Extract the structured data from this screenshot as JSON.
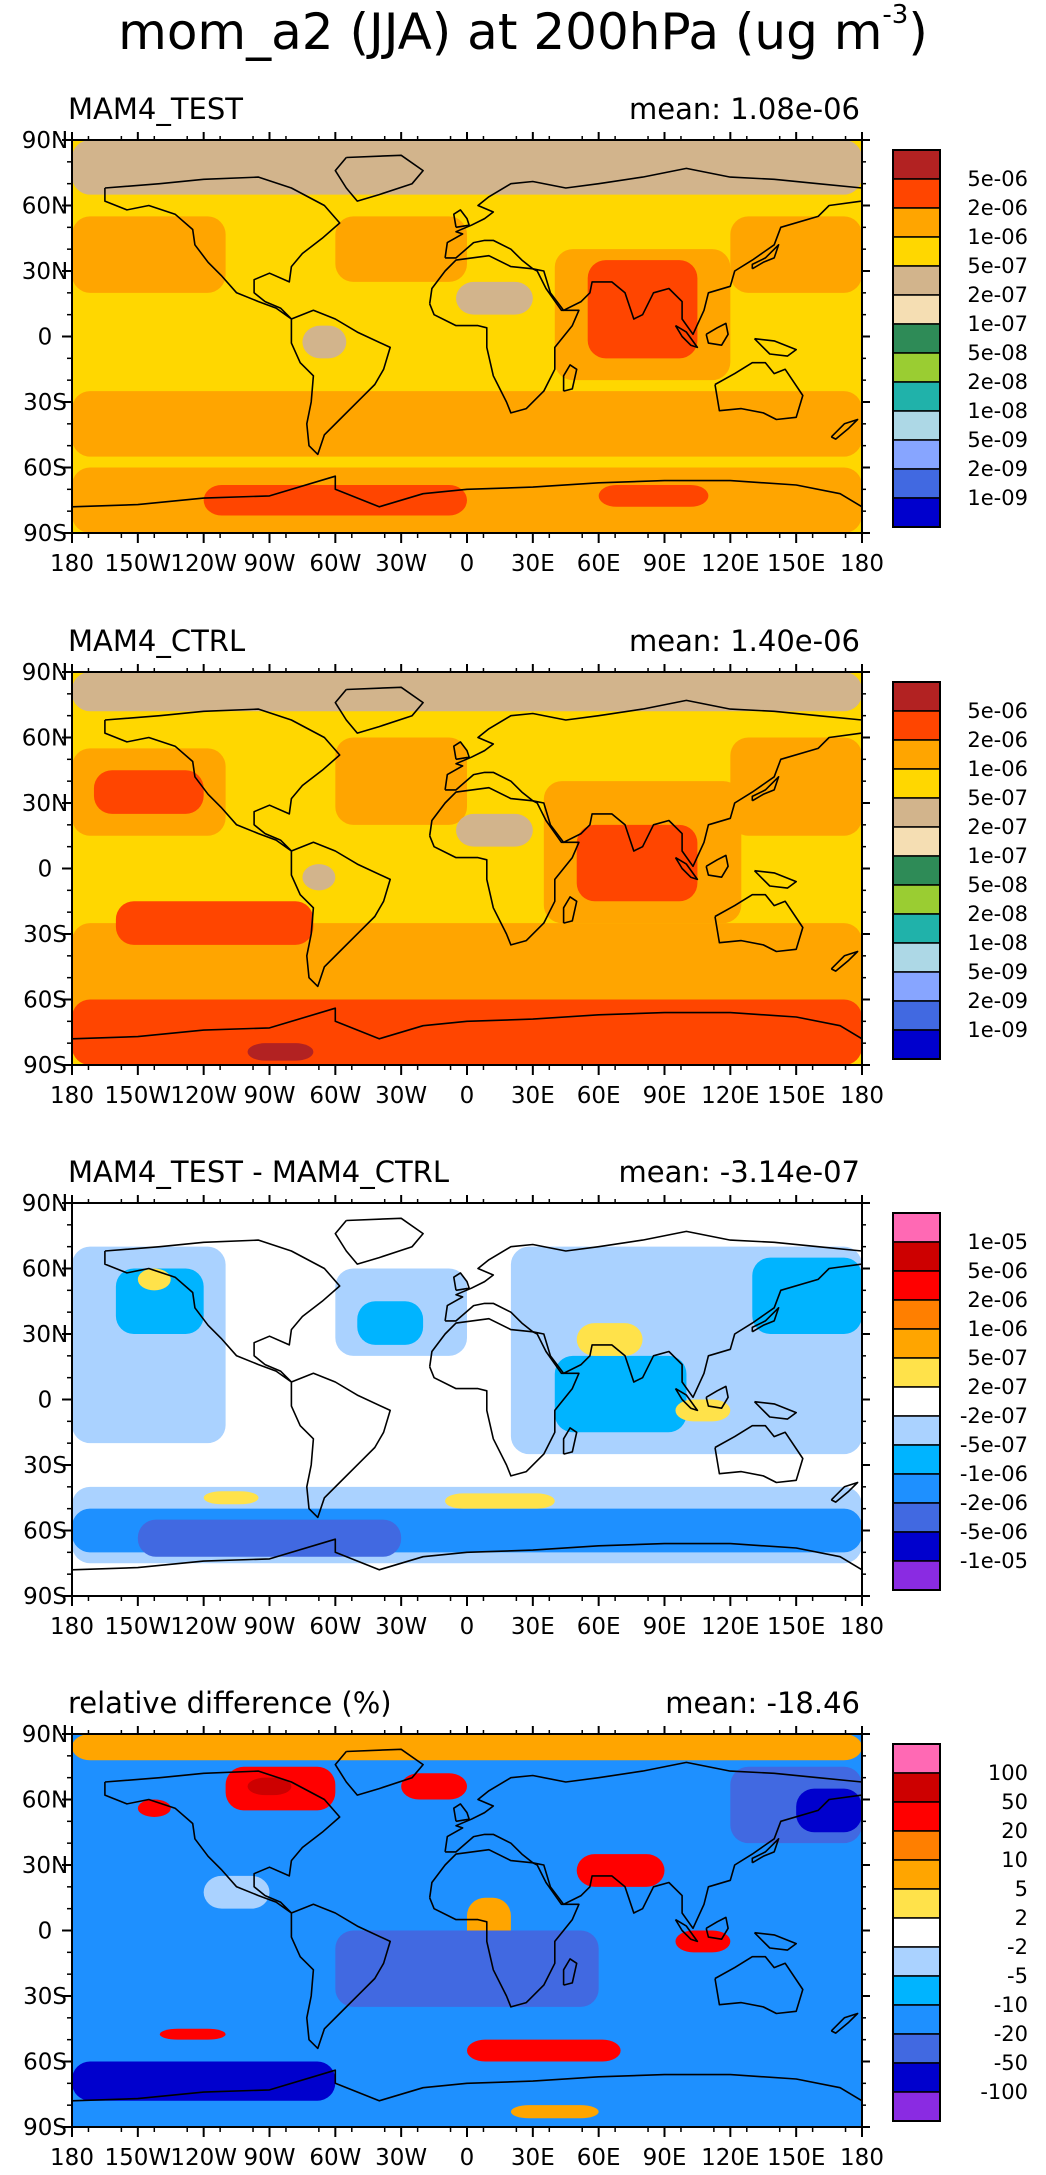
{
  "page": {
    "title": "mom_a2 (JJA) at 200hPa (ug m",
    "title_sup": "-3",
    "title_close": ")"
  },
  "chart_data": [
    {
      "type": "heatmap",
      "title": "MAM4_TEST",
      "annotation": "mean: 1.08e-06",
      "x_ticks": [
        "180",
        "150W",
        "120W",
        "90W",
        "60W",
        "30W",
        "0",
        "30E",
        "60E",
        "90E",
        "120E",
        "150E",
        "180"
      ],
      "y_ticks": [
        "90N",
        "60N",
        "30N",
        "0",
        "30S",
        "60S",
        "90S"
      ],
      "xlim": [
        -180,
        180
      ],
      "ylim": [
        -90,
        90
      ],
      "colorbar": {
        "labels": [
          "5e-06",
          "2e-06",
          "1e-06",
          "5e-07",
          "2e-07",
          "1e-07",
          "5e-08",
          "2e-08",
          "1e-08",
          "5e-09",
          "2e-09",
          "1e-09"
        ],
        "colors": [
          "#b22222",
          "#ff4500",
          "#ffa500",
          "#ffd700",
          "#d2b48c",
          "#f5deb3",
          "#2e8b57",
          "#9acd32",
          "#20b2aa",
          "#add8e6",
          "#87a5ff",
          "#4169e1",
          "#0000cd"
        ]
      },
      "fields": [
        {
          "lon": [
            -180,
            180
          ],
          "lat": [
            65,
            90
          ],
          "color": "#d2b48c"
        },
        {
          "lon": [
            -180,
            180
          ],
          "lat": [
            -90,
            -60
          ],
          "color": "#ffa500"
        },
        {
          "lon": [
            -120,
            0
          ],
          "lat": [
            -82,
            -68
          ],
          "color": "#ff4500"
        },
        {
          "lon": [
            60,
            110
          ],
          "lat": [
            -78,
            -68
          ],
          "color": "#ff4500"
        },
        {
          "lon": [
            -180,
            -110
          ],
          "lat": [
            20,
            55
          ],
          "color": "#ffa500"
        },
        {
          "lon": [
            -60,
            0
          ],
          "lat": [
            25,
            55
          ],
          "color": "#ffa500"
        },
        {
          "lon": [
            40,
            120
          ],
          "lat": [
            -20,
            40
          ],
          "color": "#ffa500"
        },
        {
          "lon": [
            55,
            105
          ],
          "lat": [
            -10,
            35
          ],
          "color": "#ff4500"
        },
        {
          "lon": [
            -180,
            180
          ],
          "lat": [
            -55,
            -25
          ],
          "color": "#ffa500"
        },
        {
          "lon": [
            -75,
            -55
          ],
          "lat": [
            -10,
            5
          ],
          "color": "#d2b48c"
        },
        {
          "lon": [
            -5,
            30
          ],
          "lat": [
            10,
            25
          ],
          "color": "#d2b48c"
        },
        {
          "lon": [
            120,
            180
          ],
          "lat": [
            20,
            55
          ],
          "color": "#ffa500"
        }
      ]
    },
    {
      "type": "heatmap",
      "title": "MAM4_CTRL",
      "annotation": "mean: 1.40e-06",
      "x_ticks": [
        "180",
        "150W",
        "120W",
        "90W",
        "60W",
        "30W",
        "0",
        "30E",
        "60E",
        "90E",
        "120E",
        "150E",
        "180"
      ],
      "y_ticks": [
        "90N",
        "60N",
        "30N",
        "0",
        "30S",
        "60S",
        "90S"
      ],
      "xlim": [
        -180,
        180
      ],
      "ylim": [
        -90,
        90
      ],
      "colorbar": {
        "labels": [
          "5e-06",
          "2e-06",
          "1e-06",
          "5e-07",
          "2e-07",
          "1e-07",
          "5e-08",
          "2e-08",
          "1e-08",
          "5e-09",
          "2e-09",
          "1e-09"
        ],
        "colors": [
          "#b22222",
          "#ff4500",
          "#ffa500",
          "#ffd700",
          "#d2b48c",
          "#f5deb3",
          "#2e8b57",
          "#9acd32",
          "#20b2aa",
          "#add8e6",
          "#87a5ff",
          "#4169e1",
          "#0000cd"
        ]
      },
      "fields": [
        {
          "lon": [
            -180,
            180
          ],
          "lat": [
            72,
            90
          ],
          "color": "#d2b48c"
        },
        {
          "lon": [
            -180,
            180
          ],
          "lat": [
            -90,
            -25
          ],
          "color": "#ffa500"
        },
        {
          "lon": [
            -180,
            180
          ],
          "lat": [
            -90,
            -60
          ],
          "color": "#ff4500"
        },
        {
          "lon": [
            -100,
            -70
          ],
          "lat": [
            -88,
            -80
          ],
          "color": "#b22222"
        },
        {
          "lon": [
            -180,
            -110
          ],
          "lat": [
            15,
            55
          ],
          "color": "#ffa500"
        },
        {
          "lon": [
            -170,
            -120
          ],
          "lat": [
            25,
            45
          ],
          "color": "#ff4500"
        },
        {
          "lon": [
            -60,
            0
          ],
          "lat": [
            20,
            60
          ],
          "color": "#ffa500"
        },
        {
          "lon": [
            35,
            125
          ],
          "lat": [
            -25,
            40
          ],
          "color": "#ffa500"
        },
        {
          "lon": [
            50,
            105
          ],
          "lat": [
            -15,
            20
          ],
          "color": "#ff4500"
        },
        {
          "lon": [
            -160,
            -70
          ],
          "lat": [
            -35,
            -15
          ],
          "color": "#ff4500"
        },
        {
          "lon": [
            -5,
            30
          ],
          "lat": [
            10,
            25
          ],
          "color": "#d2b48c"
        },
        {
          "lon": [
            -75,
            -60
          ],
          "lat": [
            -10,
            2
          ],
          "color": "#d2b48c"
        },
        {
          "lon": [
            120,
            180
          ],
          "lat": [
            15,
            60
          ],
          "color": "#ffa500"
        }
      ]
    },
    {
      "type": "heatmap",
      "title": "MAM4_TEST - MAM4_CTRL",
      "annotation": "mean: -3.14e-07",
      "x_ticks": [
        "180",
        "150W",
        "120W",
        "90W",
        "60W",
        "30W",
        "0",
        "30E",
        "60E",
        "90E",
        "120E",
        "150E",
        "180"
      ],
      "y_ticks": [
        "90N",
        "60N",
        "30N",
        "0",
        "30S",
        "60S",
        "90S"
      ],
      "xlim": [
        -180,
        180
      ],
      "ylim": [
        -90,
        90
      ],
      "colorbar": {
        "labels": [
          "1e-05",
          "5e-06",
          "2e-06",
          "1e-06",
          "5e-07",
          "2e-07",
          "-2e-07",
          "-5e-07",
          "-1e-06",
          "-2e-06",
          "-5e-06",
          "-1e-05"
        ],
        "colors": [
          "#ff69b4",
          "#cd0000",
          "#ff0000",
          "#ff7f00",
          "#ffa500",
          "#ffe24a",
          "#ffffff",
          "#aad2ff",
          "#00b4ff",
          "#1e90ff",
          "#4169e1",
          "#0000cd",
          "#8a2be2"
        ]
      },
      "fields": [
        {
          "lon": [
            -180,
            180
          ],
          "lat": [
            -75,
            -40
          ],
          "color": "#aad2ff"
        },
        {
          "lon": [
            -180,
            180
          ],
          "lat": [
            -70,
            -50
          ],
          "color": "#1e90ff"
        },
        {
          "lon": [
            -150,
            -30
          ],
          "lat": [
            -72,
            -55
          ],
          "color": "#4169e1"
        },
        {
          "lon": [
            -180,
            -110
          ],
          "lat": [
            -20,
            70
          ],
          "color": "#aad2ff"
        },
        {
          "lon": [
            -160,
            -120
          ],
          "lat": [
            30,
            60
          ],
          "color": "#00b4ff"
        },
        {
          "lon": [
            -60,
            0
          ],
          "lat": [
            20,
            60
          ],
          "color": "#aad2ff"
        },
        {
          "lon": [
            -50,
            -20
          ],
          "lat": [
            25,
            45
          ],
          "color": "#00b4ff"
        },
        {
          "lon": [
            20,
            180
          ],
          "lat": [
            -25,
            70
          ],
          "color": "#aad2ff"
        },
        {
          "lon": [
            40,
            100
          ],
          "lat": [
            -15,
            20
          ],
          "color": "#00b4ff"
        },
        {
          "lon": [
            130,
            180
          ],
          "lat": [
            30,
            65
          ],
          "color": "#00b4ff"
        },
        {
          "lon": [
            50,
            80
          ],
          "lat": [
            20,
            35
          ],
          "color": "#ffe24a"
        },
        {
          "lon": [
            95,
            120
          ],
          "lat": [
            -10,
            0
          ],
          "color": "#ffe24a"
        },
        {
          "lon": [
            -10,
            40
          ],
          "lat": [
            -50,
            -43
          ],
          "color": "#ffe24a"
        },
        {
          "lon": [
            -120,
            -95
          ],
          "lat": [
            -48,
            -42
          ],
          "color": "#ffe24a"
        },
        {
          "lon": [
            -150,
            -135
          ],
          "lat": [
            50,
            60
          ],
          "color": "#ffe24a"
        }
      ]
    },
    {
      "type": "heatmap",
      "title": "relative difference (%)",
      "annotation": "mean: -18.46",
      "x_ticks": [
        "180",
        "150W",
        "120W",
        "90W",
        "60W",
        "30W",
        "0",
        "30E",
        "60E",
        "90E",
        "120E",
        "150E",
        "180"
      ],
      "y_ticks": [
        "90N",
        "60N",
        "30N",
        "0",
        "30S",
        "60S",
        "90S"
      ],
      "xlim": [
        -180,
        180
      ],
      "ylim": [
        -90,
        90
      ],
      "colorbar": {
        "labels": [
          "100",
          "50",
          "20",
          "10",
          "5",
          "2",
          "-2",
          "-5",
          "-10",
          "-20",
          "-50",
          "-100"
        ],
        "colors": [
          "#ff69b4",
          "#cd0000",
          "#ff0000",
          "#ff7f00",
          "#ffa500",
          "#ffe24a",
          "#ffffff",
          "#aad2ff",
          "#00b4ff",
          "#1e90ff",
          "#4169e1",
          "#0000cd",
          "#8a2be2"
        ]
      },
      "fields": [
        {
          "lon": [
            -180,
            180
          ],
          "lat": [
            -90,
            90
          ],
          "color": "#1e90ff"
        },
        {
          "lon": [
            -180,
            180
          ],
          "lat": [
            78,
            90
          ],
          "color": "#ffa500"
        },
        {
          "lon": [
            -110,
            -60
          ],
          "lat": [
            55,
            75
          ],
          "color": "#ff0000"
        },
        {
          "lon": [
            -100,
            -80
          ],
          "lat": [
            62,
            70
          ],
          "color": "#cd0000"
        },
        {
          "lon": [
            -30,
            0
          ],
          "lat": [
            60,
            72
          ],
          "color": "#ff0000"
        },
        {
          "lon": [
            -150,
            -135
          ],
          "lat": [
            52,
            60
          ],
          "color": "#ff0000"
        },
        {
          "lon": [
            120,
            180
          ],
          "lat": [
            40,
            75
          ],
          "color": "#4169e1"
        },
        {
          "lon": [
            150,
            180
          ],
          "lat": [
            45,
            65
          ],
          "color": "#0000cd"
        },
        {
          "lon": [
            50,
            90
          ],
          "lat": [
            20,
            35
          ],
          "color": "#ff0000"
        },
        {
          "lon": [
            95,
            120
          ],
          "lat": [
            -10,
            0
          ],
          "color": "#ff0000"
        },
        {
          "lon": [
            0,
            20
          ],
          "lat": [
            -10,
            15
          ],
          "color": "#ffa500"
        },
        {
          "lon": [
            -140,
            -110
          ],
          "lat": [
            -50,
            -45
          ],
          "color": "#ff0000"
        },
        {
          "lon": [
            0,
            70
          ],
          "lat": [
            -60,
            -50
          ],
          "color": "#ff0000"
        },
        {
          "lon": [
            20,
            60
          ],
          "lat": [
            -86,
            -80
          ],
          "color": "#ffa500"
        },
        {
          "lon": [
            -180,
            -60
          ],
          "lat": [
            -78,
            -60
          ],
          "color": "#0000cd"
        },
        {
          "lon": [
            -60,
            60
          ],
          "lat": [
            -35,
            0
          ],
          "color": "#4169e1"
        },
        {
          "lon": [
            -120,
            -90
          ],
          "lat": [
            10,
            25
          ],
          "color": "#aad2ff"
        }
      ]
    }
  ]
}
